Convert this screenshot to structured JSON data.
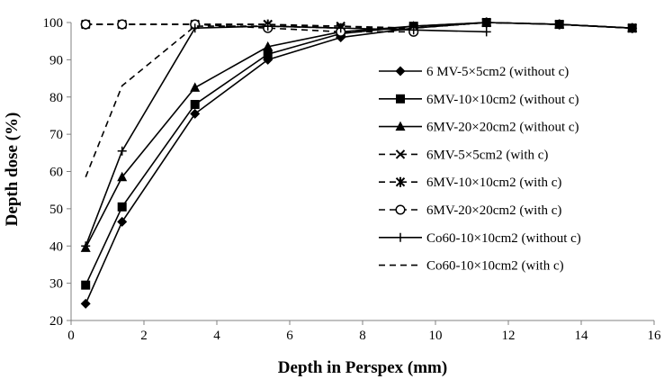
{
  "chart_data": {
    "type": "line",
    "title": "",
    "xlabel": "Depth in Perspex (mm)",
    "ylabel": "Depth dose (%)",
    "xlim": [
      0,
      16
    ],
    "ylim": [
      20,
      100
    ],
    "xticks": [
      0,
      2,
      4,
      6,
      8,
      10,
      12,
      14,
      16
    ],
    "yticks": [
      20,
      30,
      40,
      50,
      60,
      70,
      80,
      90,
      100
    ],
    "grid": false,
    "legend_position": "right",
    "series": [
      {
        "name": "6 MV-5×5cm2 (without c)",
        "line": "solid",
        "marker": "diamond",
        "x": [
          0.4,
          1.4,
          3.4,
          5.4,
          7.4,
          9.4,
          11.4,
          13.4,
          15.4
        ],
        "y": [
          24.5,
          46.5,
          75.5,
          90,
          96,
          98.5,
          100,
          99.5,
          98.5
        ]
      },
      {
        "name": "6MV-10×10cm2 (without c)",
        "line": "solid",
        "marker": "square",
        "x": [
          0.4,
          1.4,
          3.4,
          5.4,
          7.4,
          9.4,
          11.4,
          13.4,
          15.4
        ],
        "y": [
          29.5,
          50.5,
          78,
          91.5,
          97,
          99,
          100,
          99.5,
          98.5
        ]
      },
      {
        "name": "6MV-20×20cm2 (without c)",
        "line": "solid",
        "marker": "triangle",
        "x": [
          0.4,
          1.4,
          3.4,
          5.4,
          7.4,
          9.4,
          11.4,
          13.4,
          15.4
        ],
        "y": [
          39.5,
          58.5,
          82.5,
          93.5,
          97.5,
          99,
          100,
          99.5,
          98.5
        ]
      },
      {
        "name": "6MV-5×5cm2 (with c)",
        "line": "dashed",
        "marker": "x",
        "x": [
          0.4,
          1.4,
          3.4,
          5.4,
          7.4,
          9.4,
          11.4,
          13.4,
          15.4
        ],
        "y": [
          99.5,
          99.5,
          99.5,
          99.5,
          99,
          98.5,
          100,
          99.5,
          98.5
        ]
      },
      {
        "name": "6MV-10×10cm2 (with c)",
        "line": "dashed",
        "marker": "asterisk",
        "x": [
          0.4,
          1.4,
          3.4,
          5.4,
          7.4,
          9.4,
          11.4,
          13.4,
          15.4
        ],
        "y": [
          99.5,
          99.5,
          99.5,
          99.5,
          98.5,
          98.5,
          100,
          99.5,
          98.5
        ]
      },
      {
        "name": "6MV-20×20cm2 (with c)",
        "line": "dashed",
        "marker": "circle",
        "x": [
          0.4,
          1.4,
          3.4,
          5.4,
          7.4,
          9.4
        ],
        "y": [
          99.5,
          99.5,
          99.5,
          98.5,
          97.5,
          97.5
        ]
      },
      {
        "name": "Co60-10×10cm2 (without c)",
        "line": "solid",
        "marker": "plus",
        "x": [
          0.4,
          1.4,
          3.4,
          5.4,
          7.4,
          9.4,
          11.4
        ],
        "y": [
          40,
          65.5,
          98.5,
          99,
          98.5,
          98,
          97.5
        ]
      },
      {
        "name": "Co60-10×10cm2 (with c)",
        "line": "dashed",
        "marker": "none",
        "x": [
          0.4,
          1.4,
          3.4,
          5.4,
          7.4
        ],
        "y": [
          58.5,
          83,
          99,
          99,
          98.5
        ]
      }
    ]
  }
}
